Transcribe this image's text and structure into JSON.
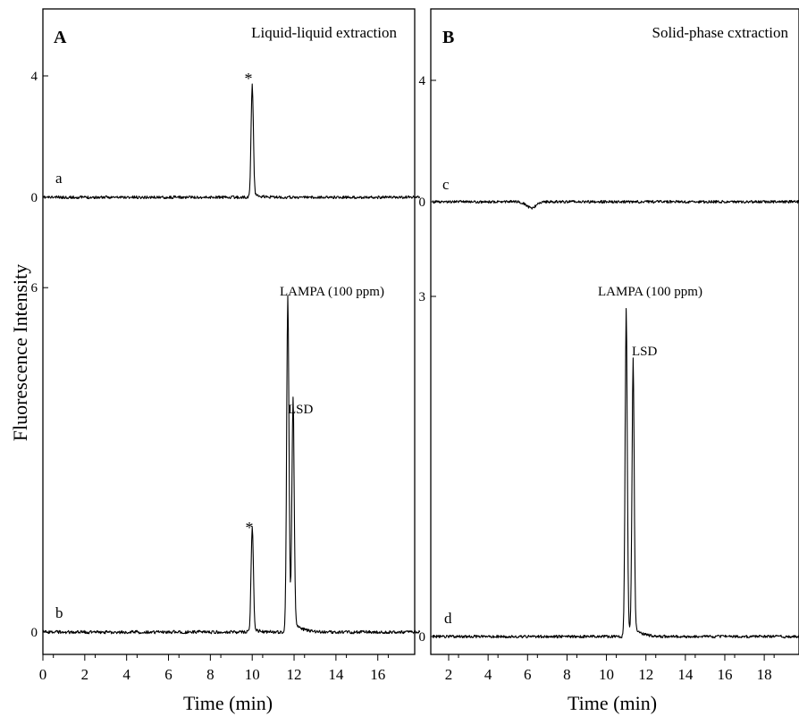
{
  "figure": {
    "ylabel": "Fluorescence Intensity",
    "xlabel": "Time (min)"
  },
  "chart_data": [
    {
      "panel": "A",
      "type": "line",
      "title": "Liquid-liquid extraction",
      "xlabel": "Time (min)",
      "ylabel": "Fluorescence Intensity",
      "xlim": [
        0,
        18
      ],
      "x_ticks": [
        0,
        2,
        4,
        6,
        8,
        10,
        12,
        14,
        16
      ],
      "traces": [
        {
          "label": "a",
          "y_ticks": [
            0,
            4
          ],
          "baseline": 0,
          "peaks": [
            {
              "x": 10.0,
              "height": 3.6,
              "marker": "*"
            }
          ],
          "annotations": [
            {
              "text": "*",
              "x": 10.0,
              "y": 3.85
            }
          ]
        },
        {
          "label": "b",
          "y_ticks": [
            0,
            6
          ],
          "baseline": 0,
          "peaks": [
            {
              "x": 10.0,
              "height": 1.8,
              "marker": "*"
            },
            {
              "x": 11.7,
              "height": 5.7,
              "name": "LAMPA (100 ppm)"
            },
            {
              "x": 11.95,
              "height": 3.9,
              "name": "LSD"
            }
          ],
          "annotations": [
            {
              "text": "*",
              "x": 10.0,
              "y": 1.85
            },
            {
              "text": "LAMPA (100 ppm)",
              "x": 11.7,
              "y": 5.9
            },
            {
              "text": "LSD",
              "x": 11.95,
              "y": 3.9
            }
          ]
        }
      ]
    },
    {
      "panel": "B",
      "type": "line",
      "title": "Solid-phase cxtraction",
      "xlabel": "Time (min)",
      "xlim": [
        1.2,
        20
      ],
      "x_ticks": [
        2,
        4,
        6,
        8,
        10,
        12,
        14,
        16,
        18
      ],
      "traces": [
        {
          "label": "c",
          "y_ticks": [
            0,
            4
          ],
          "baseline": 0,
          "peaks": [
            {
              "x": 6.2,
              "height": -0.2
            }
          ]
        },
        {
          "label": "d",
          "y_ticks": [
            0,
            3
          ],
          "baseline": 0,
          "peaks": [
            {
              "x": 11.0,
              "height": 2.8,
              "name": "LAMPA (100 ppm)"
            },
            {
              "x": 11.35,
              "height": 2.35,
              "name": "LSD"
            }
          ],
          "annotations": [
            {
              "text": "LAMPA (100 ppm)",
              "x": 11.0,
              "y": 3.0
            },
            {
              "text": "LSD",
              "x": 11.35,
              "y": 2.45
            }
          ]
        }
      ]
    }
  ]
}
